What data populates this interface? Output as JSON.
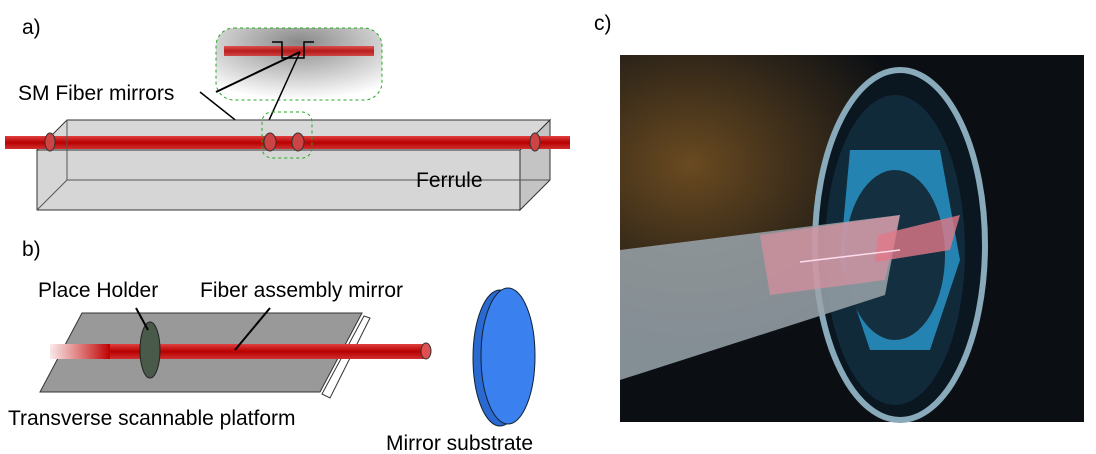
{
  "panels": {
    "a": {
      "label": "a)",
      "fiber_label": "SM Fiber mirrors",
      "ferrule_label": "Ferrule"
    },
    "b": {
      "label": "b)",
      "holder_label": "Place Holder",
      "fiber_label": "Fiber assembly mirror",
      "platform_label": "Transverse scannable platform",
      "mirror_label": "Mirror substrate"
    },
    "c": {
      "label": "c)"
    }
  }
}
